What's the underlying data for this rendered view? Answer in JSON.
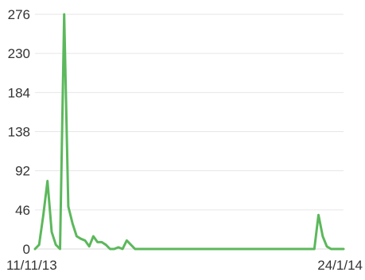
{
  "chart_data": {
    "type": "line",
    "title": "",
    "xlabel": "",
    "ylabel": "",
    "x_tick_labels": [
      "11/11/13",
      "24/1/14"
    ],
    "y_ticks": [
      0,
      46,
      92,
      138,
      184,
      230,
      276
    ],
    "y_tick_labels": [
      "0",
      "46",
      "92",
      "138",
      "184",
      "230",
      "276"
    ],
    "ylim": [
      0,
      276
    ],
    "x_count": 75,
    "grid": "horizontal",
    "legend": "none",
    "colors": {
      "series": "#5cb85c",
      "grid": "#e6e6e6",
      "text": "#333333"
    },
    "series": [
      {
        "values": [
          0,
          5,
          40,
          80,
          20,
          5,
          0,
          276,
          50,
          30,
          15,
          12,
          10,
          3,
          15,
          8,
          8,
          5,
          0,
          0,
          2,
          0,
          10,
          5,
          0,
          0,
          0,
          0,
          0,
          0,
          0,
          0,
          0,
          0,
          0,
          0,
          0,
          0,
          0,
          0,
          0,
          0,
          0,
          0,
          0,
          0,
          0,
          0,
          0,
          0,
          0,
          0,
          0,
          0,
          0,
          0,
          0,
          0,
          0,
          0,
          0,
          0,
          0,
          0,
          0,
          0,
          0,
          0,
          40,
          15,
          3,
          0,
          0,
          0,
          0
        ]
      }
    ]
  }
}
